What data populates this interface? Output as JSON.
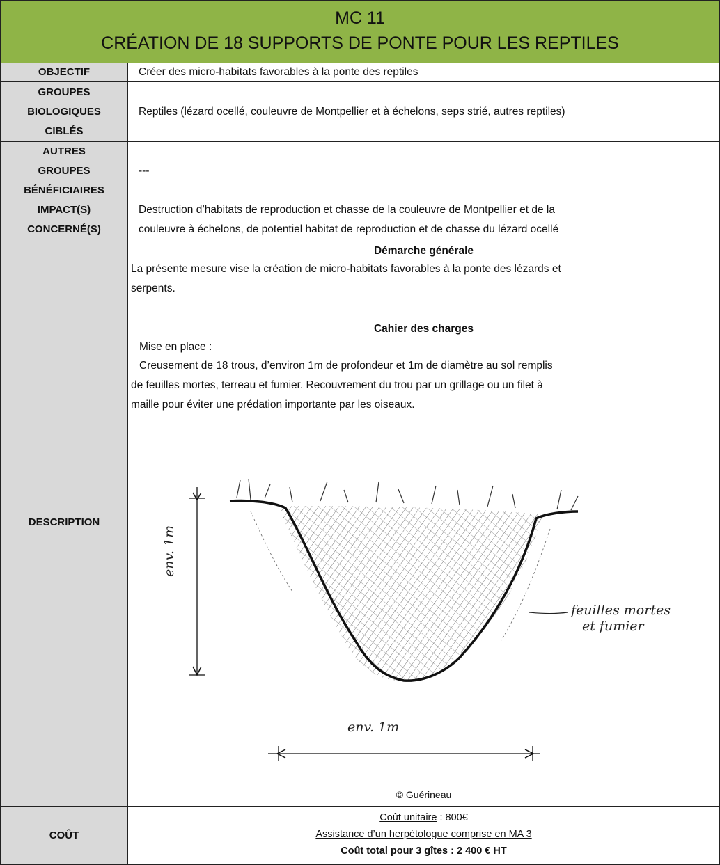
{
  "header": {
    "code": "MC 11",
    "title": "CRÉATION DE 18 SUPPORTS DE PONTE POUR LES REPTILES"
  },
  "rows": {
    "objectif": {
      "label": [
        "OBJECTIF"
      ],
      "text": [
        "Créer des micro-habitats favorables à la ponte des reptiles"
      ]
    },
    "groupes": {
      "label": [
        "GROUPES",
        "BIOLOGIQUES",
        "CIBLÉS"
      ],
      "text": [
        "Reptiles (lézard ocellé, couleuvre de Montpellier et à échelons, seps strié, autres reptiles)"
      ]
    },
    "autres": {
      "label": [
        "AUTRES",
        "GROUPES",
        "BÉNÉFICIAIRES"
      ],
      "text": [
        "---"
      ]
    },
    "impact": {
      "label": [
        "IMPACT(S)",
        "CONCERNÉ(S)"
      ],
      "text": [
        "Destruction d’habitats de reproduction et chasse de la couleuvre de Montpellier et de la",
        "couleuvre à échelons, de potentiel habitat de reproduction et de chasse du lézard ocellé"
      ]
    },
    "description": {
      "label": "DESCRIPTION",
      "heading1": "Démarche générale",
      "intro": [
        "La présente mesure vise la création de micro-habitats favorables à la ponte des lézards et",
        "serpents."
      ],
      "heading2": "Cahier des charges",
      "subheading": "Mise en place :",
      "body": [
        "Creusement de 18 trous, d’environ 1m de profondeur et 1m de diamètre au sol remplis",
        "de feuilles mortes, terreau et fumier. Recouvrement du trou par un grillage ou un filet à",
        "maille pour éviter une prédation importante par les oiseaux."
      ],
      "sketch": {
        "depth": "env. 1m",
        "width": "env. 1m",
        "fill": [
          "feuilles mortes",
          "et fumier"
        ]
      },
      "credit": "© Guérineau"
    },
    "cout": {
      "label": "COÛT",
      "unit_label": "Coût unitaire",
      "unit_value": " : 800€",
      "assistance": "Assistance d’un herpétologue comprise en MA 3",
      "total": "Coût total pour 3 gîtes : 2 400 € HT"
    }
  }
}
